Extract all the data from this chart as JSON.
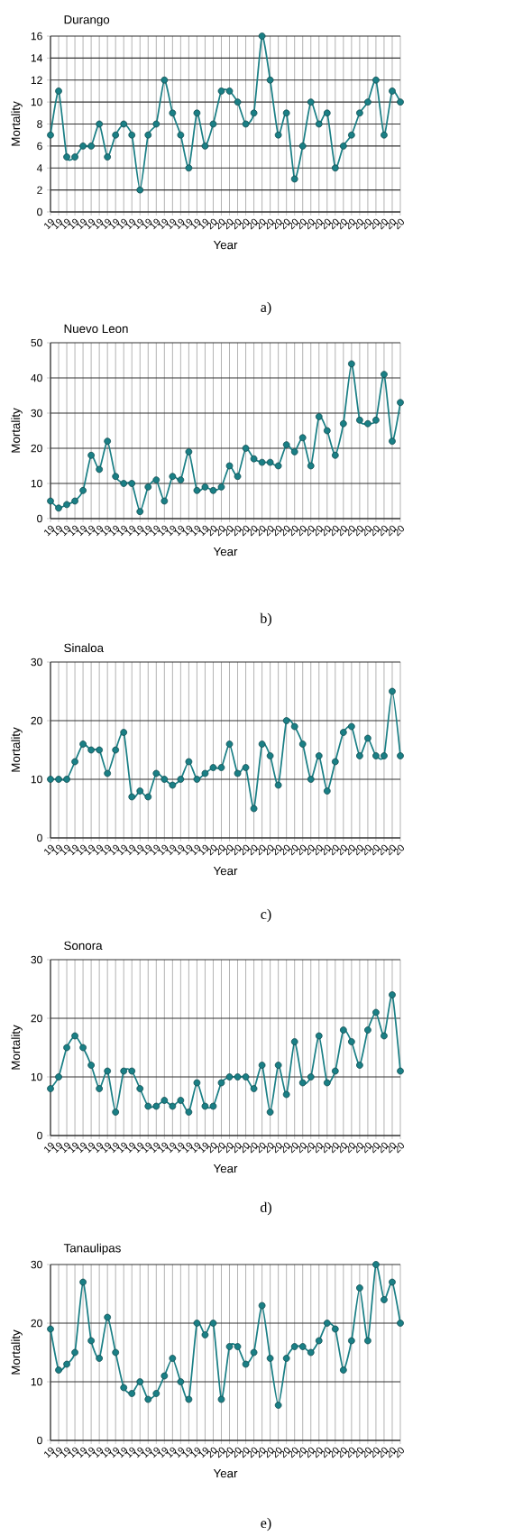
{
  "chart_data": [
    {
      "type": "line",
      "title": "Durango",
      "xlabel": "Year",
      "ylabel": "Mortality",
      "annotations": [
        "a)"
      ],
      "categories": [
        "19",
        "19",
        "19",
        "19",
        "19",
        "19",
        "19",
        "19",
        "19",
        "19",
        "19",
        "19",
        "19",
        "19",
        "19",
        "19",
        "19",
        "19",
        "19",
        "19",
        "20",
        "20",
        "20",
        "20",
        "20",
        "20",
        "20",
        "20",
        "20",
        "20",
        "20",
        "20",
        "20",
        "20",
        "20",
        "20",
        "20",
        "20",
        "20",
        "20",
        "20",
        "20",
        "20",
        "20"
      ],
      "series": [
        {
          "color": "#1a7f85",
          "values": [
            7,
            11,
            5,
            5,
            6,
            6,
            8,
            5,
            7,
            8,
            7,
            2,
            7,
            8,
            12,
            9,
            7,
            4,
            9,
            6,
            8,
            11,
            11,
            10,
            8,
            9,
            16,
            12,
            7,
            9,
            3,
            6,
            10,
            8,
            9,
            4,
            6,
            7,
            9,
            10,
            12,
            7,
            11,
            10
          ]
        }
      ],
      "ylim": [
        0,
        16
      ],
      "yticks": [
        0,
        2,
        4,
        6,
        8,
        10,
        12,
        14,
        16
      ],
      "grid": true,
      "marker": "circle"
    },
    {
      "type": "line",
      "title": "Nuevo Leon",
      "xlabel": "Year",
      "ylabel": "Mortality",
      "annotations": [
        "b)"
      ],
      "categories": [
        "19",
        "19",
        "19",
        "19",
        "19",
        "19",
        "19",
        "19",
        "19",
        "19",
        "19",
        "19",
        "19",
        "19",
        "19",
        "19",
        "19",
        "19",
        "19",
        "19",
        "20",
        "20",
        "20",
        "20",
        "20",
        "20",
        "20",
        "20",
        "20",
        "20",
        "20",
        "20",
        "20",
        "20",
        "20",
        "20",
        "20",
        "20",
        "20",
        "20",
        "20",
        "20",
        "20",
        "20"
      ],
      "series": [
        {
          "color": "#1a7f85",
          "values": [
            5,
            3,
            4,
            5,
            8,
            18,
            14,
            22,
            12,
            10,
            10,
            2,
            9,
            11,
            5,
            12,
            11,
            19,
            8,
            9,
            8,
            9,
            15,
            12,
            20,
            17,
            16,
            16,
            15,
            21,
            19,
            23,
            15,
            29,
            25,
            18,
            27,
            44,
            28,
            27,
            28,
            41,
            22,
            33
          ]
        }
      ],
      "ylim": [
        0,
        50
      ],
      "yticks": [
        0,
        10,
        20,
        30,
        40,
        50
      ],
      "grid": true,
      "marker": "circle"
    },
    {
      "type": "line",
      "title": "Sinaloa",
      "xlabel": "Year",
      "ylabel": "Mortality",
      "annotations": [
        "c)"
      ],
      "categories": [
        "19",
        "19",
        "19",
        "19",
        "19",
        "19",
        "19",
        "19",
        "19",
        "19",
        "19",
        "19",
        "19",
        "19",
        "19",
        "19",
        "19",
        "19",
        "19",
        "19",
        "20",
        "20",
        "20",
        "20",
        "20",
        "20",
        "20",
        "20",
        "20",
        "20",
        "20",
        "20",
        "20",
        "20",
        "20",
        "20",
        "20",
        "20",
        "20",
        "20",
        "20",
        "20",
        "20",
        "20"
      ],
      "series": [
        {
          "color": "#1a7f85",
          "values": [
            10,
            10,
            10,
            13,
            16,
            15,
            15,
            11,
            15,
            18,
            7,
            8,
            7,
            11,
            10,
            9,
            10,
            13,
            10,
            11,
            12,
            12,
            16,
            11,
            12,
            5,
            16,
            14,
            9,
            20,
            19,
            16,
            10,
            14,
            8,
            13,
            18,
            19,
            14,
            17,
            14,
            14,
            25,
            14
          ]
        }
      ],
      "ylim": [
        0,
        30
      ],
      "yticks": [
        0,
        10,
        20,
        30
      ],
      "grid": true,
      "marker": "circle"
    },
    {
      "type": "line",
      "title": "Sonora",
      "xlabel": "Year",
      "ylabel": "Mortality",
      "annotations": [
        "d)"
      ],
      "categories": [
        "19",
        "19",
        "19",
        "19",
        "19",
        "19",
        "19",
        "19",
        "19",
        "19",
        "19",
        "19",
        "19",
        "19",
        "19",
        "19",
        "19",
        "19",
        "19",
        "19",
        "20",
        "20",
        "20",
        "20",
        "20",
        "20",
        "20",
        "20",
        "20",
        "20",
        "20",
        "20",
        "20",
        "20",
        "20",
        "20",
        "20",
        "20",
        "20",
        "20",
        "20",
        "20",
        "20",
        "20"
      ],
      "series": [
        {
          "color": "#1a7f85",
          "values": [
            8,
            10,
            15,
            17,
            15,
            12,
            8,
            11,
            4,
            11,
            11,
            8,
            5,
            5,
            6,
            5,
            6,
            4,
            9,
            5,
            5,
            9,
            10,
            10,
            10,
            8,
            12,
            4,
            12,
            7,
            16,
            9,
            10,
            17,
            9,
            11,
            18,
            16,
            12,
            18,
            21,
            17,
            24,
            11
          ]
        }
      ],
      "ylim": [
        0,
        30
      ],
      "yticks": [
        0,
        10,
        20,
        30
      ],
      "grid": true,
      "marker": "circle"
    },
    {
      "type": "line",
      "title": "Tanaulipas",
      "xlabel": "Year",
      "ylabel": "Mortality",
      "annotations": [
        "e)"
      ],
      "categories": [
        "19",
        "19",
        "19",
        "19",
        "19",
        "19",
        "19",
        "19",
        "19",
        "19",
        "19",
        "19",
        "19",
        "19",
        "19",
        "19",
        "19",
        "19",
        "19",
        "19",
        "20",
        "20",
        "20",
        "20",
        "20",
        "20",
        "20",
        "20",
        "20",
        "20",
        "20",
        "20",
        "20",
        "20",
        "20",
        "20",
        "20",
        "20",
        "20",
        "20",
        "20",
        "20",
        "20",
        "20"
      ],
      "series": [
        {
          "color": "#1a7f85",
          "values": [
            19,
            12,
            13,
            15,
            27,
            17,
            14,
            21,
            15,
            9,
            8,
            10,
            7,
            8,
            11,
            14,
            10,
            7,
            20,
            18,
            20,
            7,
            16,
            16,
            13,
            15,
            23,
            14,
            6,
            14,
            16,
            16,
            15,
            17,
            20,
            19,
            12,
            17,
            26,
            17,
            30,
            24,
            27,
            20
          ]
        }
      ],
      "ylim": [
        0,
        30
      ],
      "yticks": [
        0,
        10,
        20,
        30
      ],
      "grid": true,
      "marker": "circle"
    }
  ]
}
